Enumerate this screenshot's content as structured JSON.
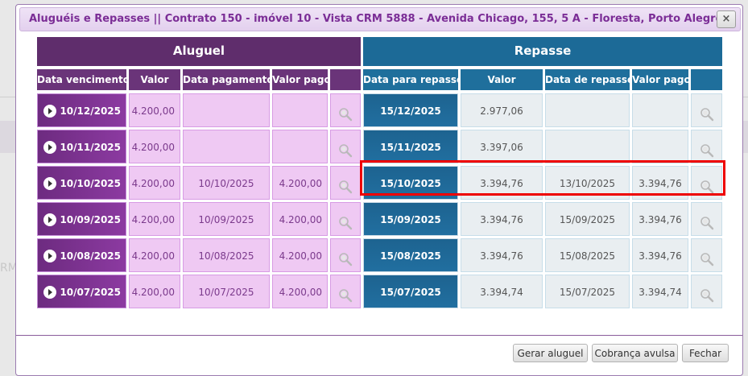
{
  "dialog": {
    "title": "Aluguéis e Repasses || Contrato 150 - imóvel 10 - Vista CRM 5888 - Avenida Chicago, 155, 5 A - Floresta, Porto Alegre...",
    "close_label": "×"
  },
  "aluguel": {
    "title": "Aluguel",
    "columns": [
      "Data vencimento",
      "Valor",
      "Data pagamento",
      "Valor pago",
      ""
    ]
  },
  "repasse": {
    "title": "Repasse",
    "columns": [
      "Data para repasse",
      "Valor",
      "Data de repasse",
      "Valor pago",
      ""
    ]
  },
  "rows": [
    {
      "vencimento": "10/12/2025",
      "valor": "4.200,00",
      "pagamento": "",
      "valor_pago": "",
      "data_repasse_prev": "15/12/2025",
      "repasse_valor": "2.977,06",
      "data_repasse": "",
      "repasse_pago": ""
    },
    {
      "vencimento": "10/11/2025",
      "valor": "4.200,00",
      "pagamento": "",
      "valor_pago": "",
      "data_repasse_prev": "15/11/2025",
      "repasse_valor": "3.397,06",
      "data_repasse": "",
      "repasse_pago": ""
    },
    {
      "vencimento": "10/10/2025",
      "valor": "4.200,00",
      "pagamento": "10/10/2025",
      "valor_pago": "4.200,00",
      "data_repasse_prev": "15/10/2025",
      "repasse_valor": "3.394,76",
      "data_repasse": "13/10/2025",
      "repasse_pago": "3.394,76"
    },
    {
      "vencimento": "10/09/2025",
      "valor": "4.200,00",
      "pagamento": "10/09/2025",
      "valor_pago": "4.200,00",
      "data_repasse_prev": "15/09/2025",
      "repasse_valor": "3.394,76",
      "data_repasse": "15/09/2025",
      "repasse_pago": "3.394,76"
    },
    {
      "vencimento": "10/08/2025",
      "valor": "4.200,00",
      "pagamento": "10/08/2025",
      "valor_pago": "4.200,00",
      "data_repasse_prev": "15/08/2025",
      "repasse_valor": "3.394,76",
      "data_repasse": "15/08/2025",
      "repasse_pago": "3.394,76"
    },
    {
      "vencimento": "10/07/2025",
      "valor": "4.200,00",
      "pagamento": "10/07/2025",
      "valor_pago": "4.200,00",
      "data_repasse_prev": "15/07/2025",
      "repasse_valor": "3.394,74",
      "data_repasse": "15/07/2025",
      "repasse_pago": "3.394,74"
    }
  ],
  "highlighted_row": 2,
  "buttons": {
    "gerar_aluguel": "Gerar aluguel",
    "cobranca_avulsa": "Cobrança avulsa",
    "fechar": "Fechar"
  },
  "background_text": "RM",
  "icons": {
    "row_expand": "play-circle-icon",
    "row_detail": "magnifier-icon",
    "close": "close-icon"
  },
  "colors": {
    "aluguel_header": "#5f2d6c",
    "repasse_header": "#1c6a97",
    "highlight": "#ee0000"
  }
}
